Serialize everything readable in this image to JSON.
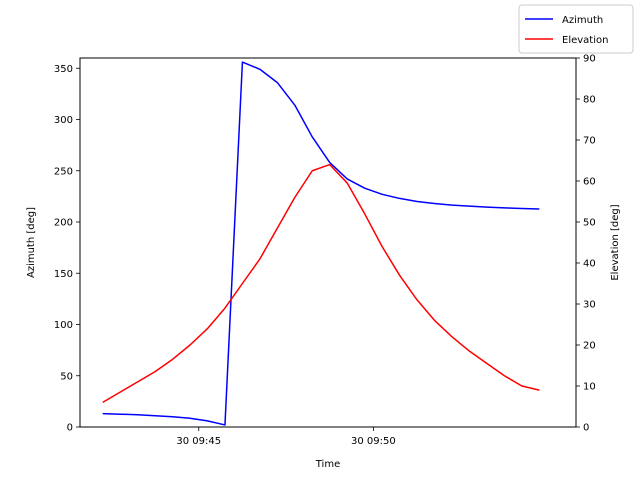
{
  "chart_data": {
    "type": "line",
    "xlabel": "Time",
    "x_ticks": [
      {
        "t": 45,
        "label": "30 09:45"
      },
      {
        "t": 50,
        "label": "30 09:50"
      }
    ],
    "xlim_minutes_after_0900": [
      41.6,
      55.8
    ],
    "y_left": {
      "label": "Azimuth [deg]",
      "lim": [
        0,
        360
      ],
      "ticks": [
        0,
        50,
        100,
        150,
        200,
        250,
        300,
        350
      ]
    },
    "y_right": {
      "label": "Elevation [deg]",
      "lim": [
        0,
        90
      ],
      "ticks": [
        0,
        10,
        20,
        30,
        40,
        50,
        60,
        70,
        80,
        90
      ]
    },
    "legend_position": "top-right",
    "series": [
      {
        "name": "Azimuth",
        "axis": "left",
        "color": "#0000ff",
        "x": [
          42.25,
          42.75,
          43.25,
          43.75,
          44.25,
          44.75,
          45.25,
          45.75,
          46.25,
          46.75,
          47.25,
          47.75,
          48.25,
          48.75,
          49.25,
          49.75,
          50.25,
          50.75,
          51.25,
          51.75,
          52.25,
          52.75,
          53.25,
          53.75,
          54.25,
          54.75
        ],
        "values": [
          13,
          12.5,
          12,
          11,
          10,
          8.5,
          6,
          2,
          356,
          349,
          336,
          314,
          283,
          258,
          242,
          233,
          227,
          223,
          220,
          218,
          216.5,
          215.5,
          214.5,
          213.8,
          213.2,
          212.7
        ]
      },
      {
        "name": "Elevation",
        "axis": "right",
        "color": "#ff0000",
        "x": [
          42.25,
          42.75,
          43.25,
          43.75,
          44.25,
          44.75,
          45.25,
          45.75,
          46.25,
          46.75,
          47.25,
          47.75,
          48.25,
          48.75,
          49.25,
          49.75,
          50.25,
          50.75,
          51.25,
          51.75,
          52.25,
          52.75,
          53.25,
          53.75,
          54.25,
          54.75
        ],
        "values": [
          6,
          8.5,
          11,
          13.5,
          16.5,
          20,
          24,
          29,
          35,
          41,
          48.5,
          56,
          62.5,
          64,
          59.5,
          52,
          44,
          37,
          31,
          26,
          22,
          18.5,
          15.5,
          12.5,
          10,
          9
        ]
      }
    ]
  }
}
